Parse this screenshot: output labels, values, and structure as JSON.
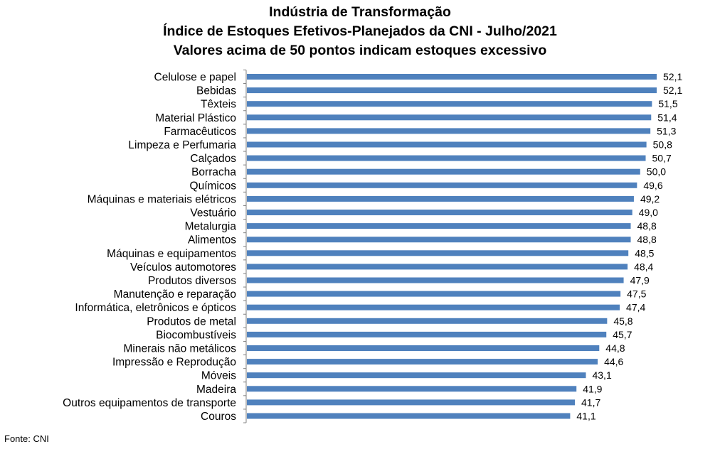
{
  "title_lines": [
    "Indústria de Transformação",
    "Índice de Estoques Efetivos-Planejados da CNI - Julho/2021",
    "Valores acima de 50 pontos indicam estoques excessivo"
  ],
  "source": "Fonte: CNI",
  "colors": {
    "bar": "#4F81BD",
    "axis": "#808080"
  },
  "chart_data": {
    "type": "bar",
    "orientation": "horizontal",
    "title": "Indústria de Transformação — Índice de Estoques Efetivos-Planejados da CNI - Julho/2021 — Valores acima de 50 pontos indicam estoques excessivo",
    "xlabel": "",
    "ylabel": "",
    "grid": false,
    "categories": [
      "Celulose e papel",
      "Bebidas",
      "Têxteis",
      "Material Plástico",
      "Farmacêuticos",
      "Limpeza e Perfumaria",
      "Calçados",
      "Borracha",
      "Químicos",
      "Máquinas e materiais elétricos",
      "Vestuário",
      "Metalurgia",
      "Alimentos",
      "Máquinas e equipamentos",
      "Veículos automotores",
      "Produtos diversos",
      "Manutenção e reparação",
      "Informática, eletrônicos e ópticos",
      "Produtos de metal",
      "Biocombustíveis",
      "Minerais não metálicos",
      "Impressão e Reprodução",
      "Móveis",
      "Madeira",
      "Outros equipamentos de transporte",
      "Couros"
    ],
    "values": [
      52.1,
      52.1,
      51.5,
      51.4,
      51.3,
      50.8,
      50.7,
      50.0,
      49.6,
      49.2,
      49.0,
      48.8,
      48.8,
      48.5,
      48.4,
      47.9,
      47.5,
      47.4,
      45.8,
      45.7,
      44.8,
      44.6,
      43.1,
      41.9,
      41.7,
      41.1
    ],
    "value_labels": [
      "52,1",
      "52,1",
      "51,5",
      "51,4",
      "51,3",
      "50,8",
      "50,7",
      "50,0",
      "49,6",
      "49,2",
      "49,0",
      "48,8",
      "48,8",
      "48,5",
      "48,4",
      "47,9",
      "47,5",
      "47,4",
      "45,8",
      "45,7",
      "44,8",
      "44,6",
      "43,1",
      "41,9",
      "41,7",
      "41,1"
    ],
    "xlim": [
      0,
      52.1
    ]
  }
}
